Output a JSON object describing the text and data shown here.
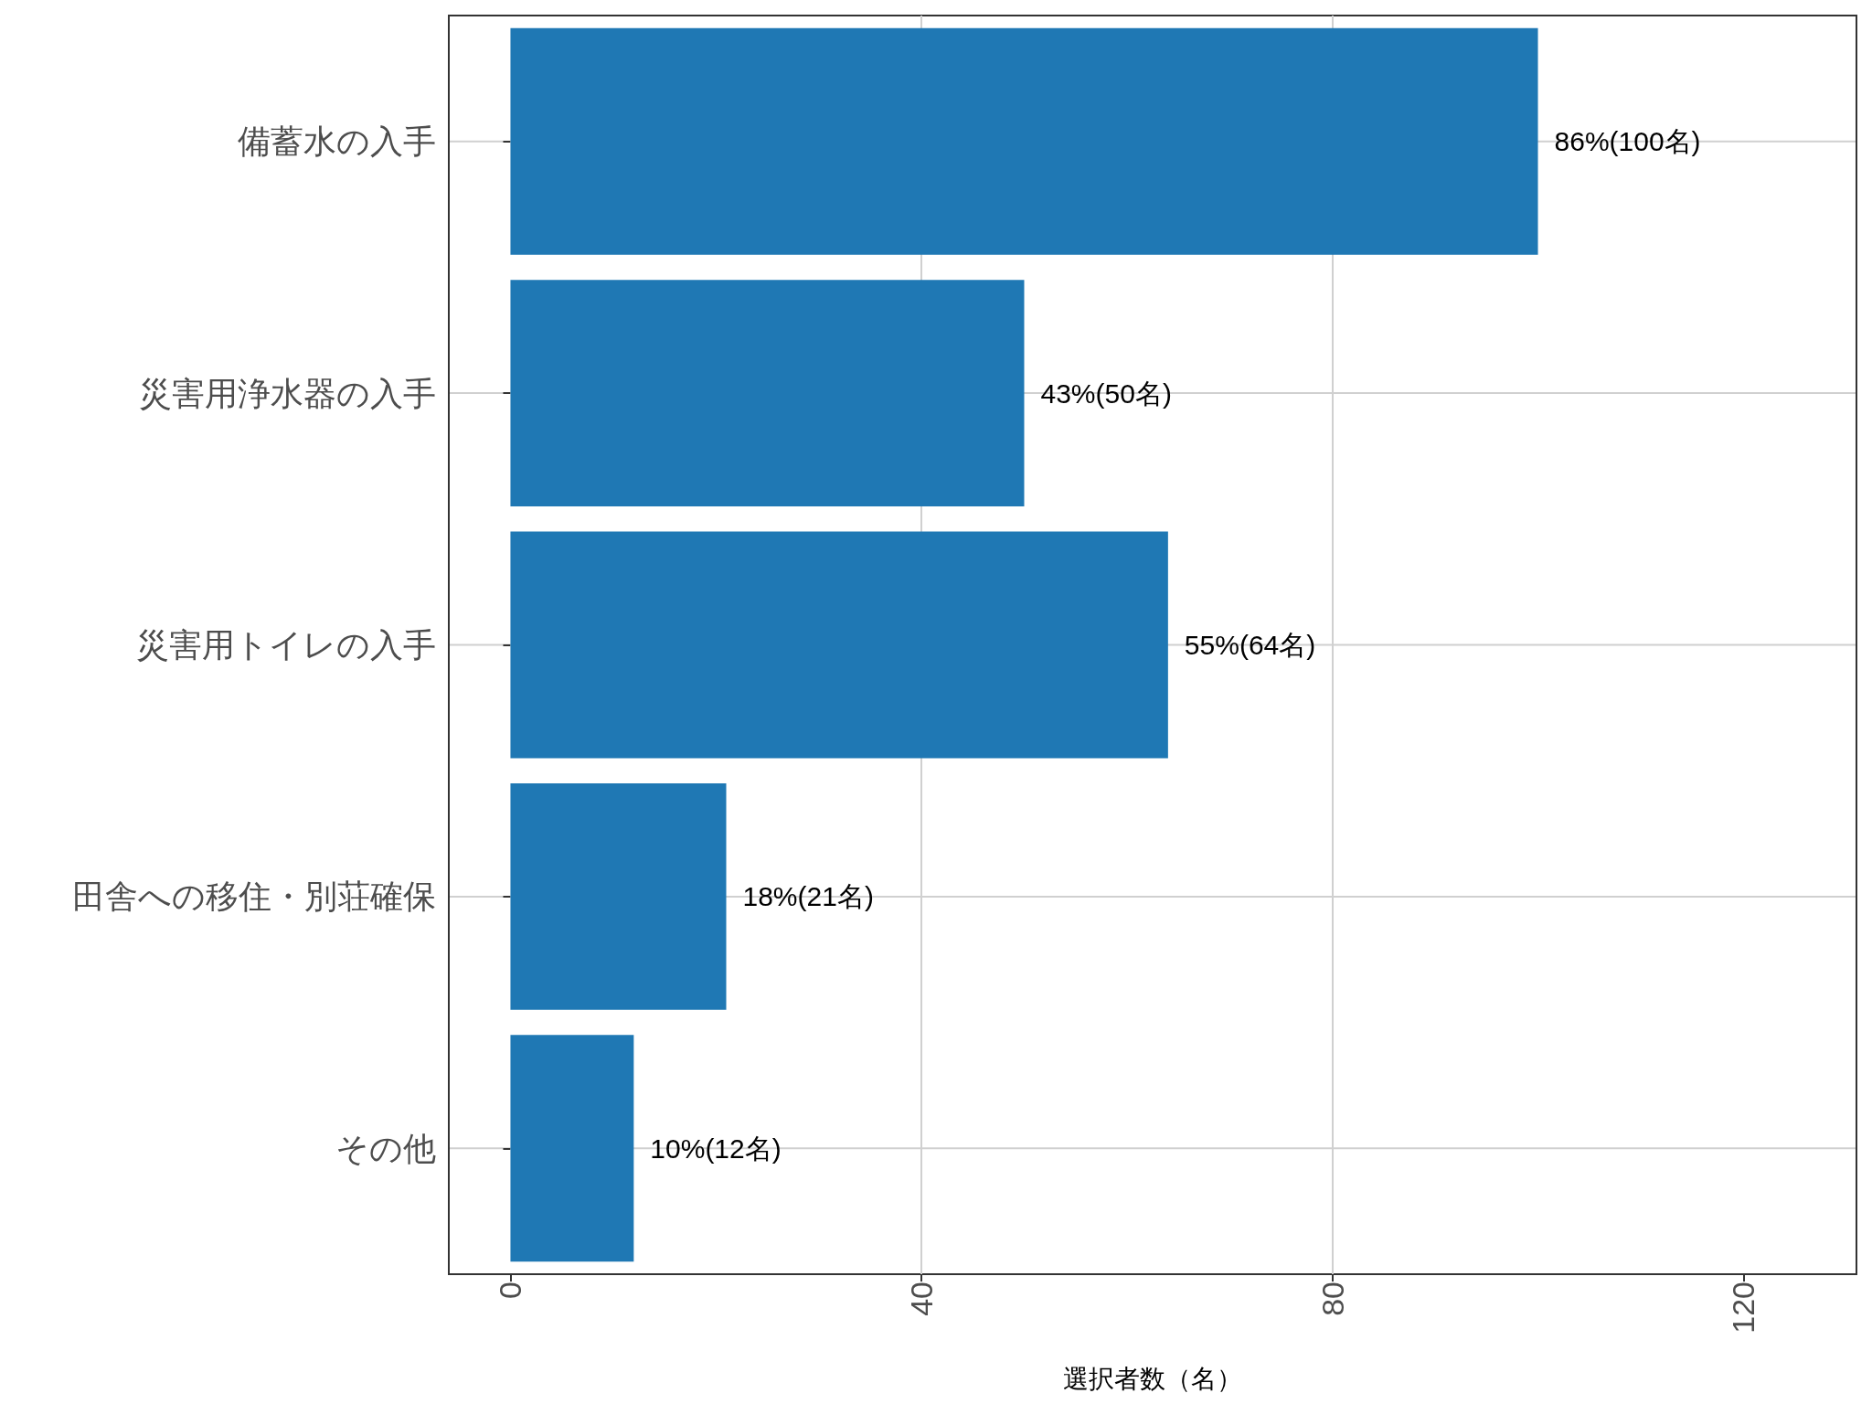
{
  "chart_data": {
    "type": "bar",
    "orientation": "horizontal",
    "xlabel": "選択者数（名）",
    "categories": [
      "備蓄水の入手",
      "災害用浄水器の入手",
      "災害用トイレの入手",
      "田舎への移住・別荘確保",
      "その他"
    ],
    "values": [
      100,
      50,
      64,
      21,
      12
    ],
    "value_labels": [
      "86%(100名)",
      "43%(50名)",
      "55%(64名)",
      "18%(21名)",
      "10%(12名)"
    ],
    "color": "#1f78b4",
    "xlim": [
      -6,
      131
    ],
    "xticks": [
      0,
      40,
      80,
      120
    ],
    "grid": true
  }
}
